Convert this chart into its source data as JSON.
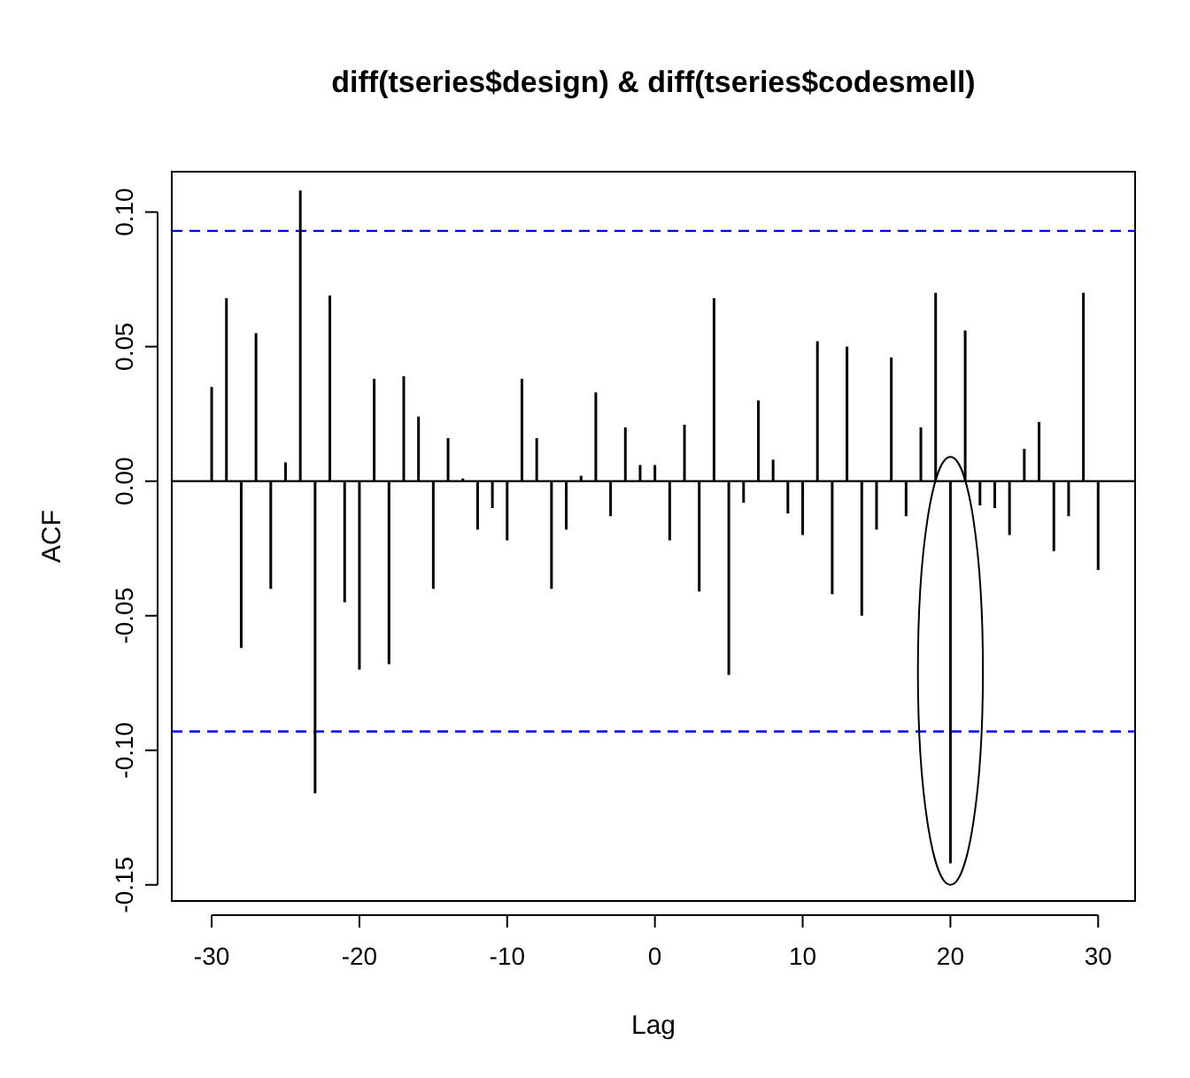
{
  "chart_data": {
    "type": "bar",
    "title": "diff(tseries$design) & diff(tseries$codesmell)",
    "xlabel": "Lag",
    "ylabel": "ACF",
    "x": [
      -30,
      -29,
      -28,
      -27,
      -26,
      -25,
      -24,
      -23,
      -22,
      -21,
      -20,
      -19,
      -18,
      -17,
      -16,
      -15,
      -14,
      -13,
      -12,
      -11,
      -10,
      -9,
      -8,
      -7,
      -6,
      -5,
      -4,
      -3,
      -2,
      -1,
      0,
      1,
      2,
      3,
      4,
      5,
      6,
      7,
      8,
      9,
      10,
      11,
      12,
      13,
      14,
      15,
      16,
      17,
      18,
      19,
      20,
      21,
      22,
      23,
      24,
      25,
      26,
      27,
      28,
      29,
      30
    ],
    "values": [
      0.035,
      0.068,
      -0.062,
      0.055,
      -0.04,
      0.007,
      0.108,
      -0.116,
      0.069,
      -0.045,
      -0.07,
      0.038,
      -0.068,
      0.039,
      0.024,
      -0.04,
      0.016,
      0.001,
      -0.018,
      -0.01,
      -0.022,
      0.038,
      0.016,
      -0.04,
      -0.018,
      0.002,
      0.033,
      -0.013,
      0.02,
      0.006,
      0.006,
      -0.022,
      0.021,
      -0.041,
      0.068,
      -0.072,
      -0.008,
      0.03,
      0.008,
      -0.012,
      -0.02,
      0.052,
      -0.042,
      0.05,
      -0.05,
      -0.018,
      0.046,
      -0.013,
      0.02,
      0.07,
      -0.142,
      0.056,
      -0.009,
      -0.01,
      -0.02,
      0.012,
      0.022,
      -0.026,
      -0.013,
      0.07,
      -0.033
    ],
    "color": "#000000",
    "xlim": [
      -32.7,
      32.5
    ],
    "ylim": [
      -0.156,
      0.115
    ],
    "xticks": [
      -30,
      -20,
      -10,
      0,
      10,
      20,
      30
    ],
    "yticks": [
      {
        "value": -0.15,
        "label": "-0.15"
      },
      {
        "value": -0.1,
        "label": "-0.10"
      },
      {
        "value": -0.05,
        "label": "-0.05"
      },
      {
        "value": 0,
        "label": "0.00"
      },
      {
        "value": 0.05,
        "label": "0.05"
      },
      {
        "value": 0.1,
        "label": "0.10"
      }
    ],
    "grid": false,
    "ref_lines": [
      {
        "axis": "y",
        "value": 0.093,
        "color": "#0000ff",
        "line_style": "dashed"
      },
      {
        "axis": "y",
        "value": -0.093,
        "color": "#0000ff",
        "line_style": "dashed"
      },
      {
        "axis": "y",
        "value": 0,
        "color": "#000000",
        "line_style": "solid"
      }
    ]
  }
}
